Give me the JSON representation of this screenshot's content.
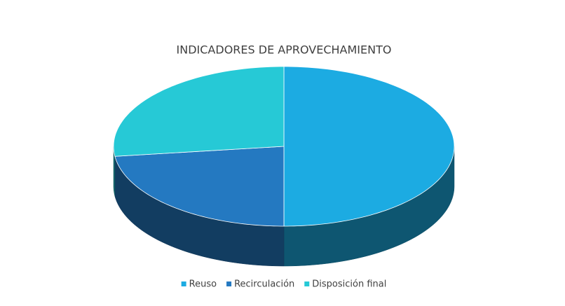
{
  "chart_data": {
    "type": "pie3d",
    "title": "INDICADORES DE APROVECHAMIENTO",
    "categories": [
      "Reuso",
      "Recirculación",
      "Disposición final"
    ],
    "values": [
      50,
      23,
      27
    ],
    "colors": [
      "#1cabe2",
      "#2479c1",
      "#26c9d6"
    ],
    "legend": "bottom"
  }
}
